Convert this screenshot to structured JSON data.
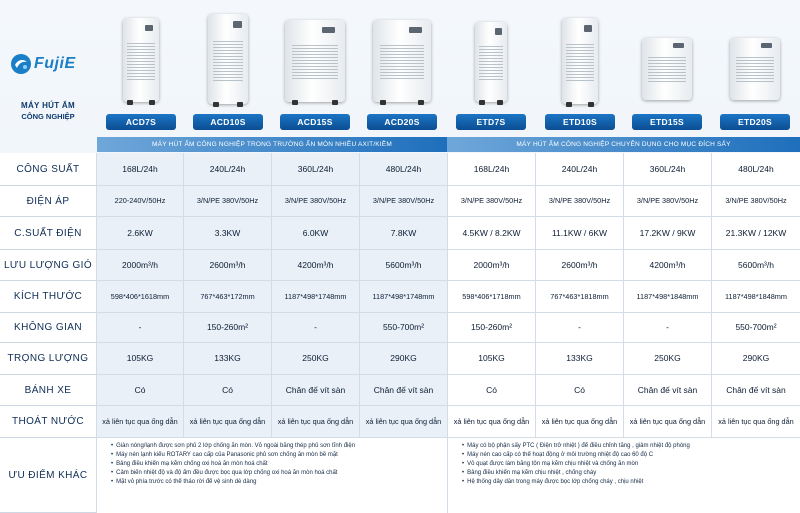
{
  "brand": {
    "logo_text": "FujiE",
    "title_line1": "MÁY HÚT ẨM",
    "title_line2": "CÔNG NGHIỆP"
  },
  "products": [
    {
      "model": "ACD7S"
    },
    {
      "model": "ACD10S"
    },
    {
      "model": "ACD15S"
    },
    {
      "model": "ACD20S"
    },
    {
      "model": "ETD7S"
    },
    {
      "model": "ETD10S"
    },
    {
      "model": "ETD15S"
    },
    {
      "model": "ETD20S"
    }
  ],
  "groups": {
    "acid": "MÁY HÚT ẨM CÔNG NGHIỆP TRONG TRƯỜNG ẨN MÒN NHIỀU AXIT/KIỀM",
    "drying": "MÁY HÚT ẨM CÔNG NGHIỆP CHUYÊN DỤNG CHO MỤC ĐÍCH SẤY"
  },
  "rows": [
    {
      "label": "CÔNG SUẤT",
      "values": [
        "168L/24h",
        "240L/24h",
        "360L/24h",
        "480L/24h",
        "168L/24h",
        "240L/24h",
        "360L/24h",
        "480L/24h"
      ]
    },
    {
      "label": "ĐIỆN ÁP",
      "values": [
        "220-240V/50Hz",
        "3/N/PE 380V/50Hz",
        "3/N/PE 380V/50Hz",
        "3/N/PE 380V/50Hz",
        "3/N/PE 380V/50Hz",
        "3/N/PE 380V/50Hz",
        "3/N/PE 380V/50Hz",
        "3/N/PE 380V/50Hz"
      ]
    },
    {
      "label": "C.SUẤT ĐIỆN",
      "values": [
        "2.6KW",
        "3.3KW",
        "6.0KW",
        "7.8KW",
        "4.5KW / 8.2KW",
        "11.1KW / 6KW",
        "17.2KW / 9KW",
        "21.3KW / 12KW"
      ]
    },
    {
      "label": "LƯU LƯỢNG GIÓ",
      "values": [
        "2000m³/h",
        "2600m³/h",
        "4200m³/h",
        "5600m³/h",
        "2000m³/h",
        "2600m³/h",
        "4200m³/h",
        "5600m³/h"
      ]
    },
    {
      "label": "KÍCH THƯỚC",
      "values": [
        "598*406*1618mm",
        "767*463*172mm",
        "1187*498*1748mm",
        "1187*498*1748mm",
        "598*406*1718mm",
        "767*463*1818mm",
        "1187*498*1848mm",
        "1187*498*1848mm"
      ]
    },
    {
      "label": "KHÔNG GIAN",
      "values": [
        "-",
        "150-260m²",
        "-",
        "550-700m²",
        "150-260m²",
        "-",
        "-",
        "550-700m²"
      ]
    },
    {
      "label": "TRỌNG LƯỢNG",
      "values": [
        "105KG",
        "133KG",
        "250KG",
        "290KG",
        "105KG",
        "133KG",
        "250KG",
        "290KG"
      ]
    },
    {
      "label": "BÁNH XE",
      "values": [
        "Có",
        "Có",
        "Chân đế vít sàn",
        "Chân đế vít sàn",
        "Có",
        "Có",
        "Chân đế vít sàn",
        "Chân đế vít sàn"
      ]
    },
    {
      "label": "THOÁT NƯỚC",
      "values": [
        "xả liên tục qua ống dẫn",
        "xả liên tục qua ống dẫn",
        "xả liên tục qua ống dẫn",
        "xả liên tục qua ống dẫn",
        "xả liên tục qua ống dẫn",
        "xả liên tục qua ống dẫn",
        "xả liên tục qua ống dẫn",
        "xả liên tục qua ống dẫn"
      ]
    }
  ],
  "advantages": {
    "label": "ƯU ĐIỂM KHÁC",
    "acid": [
      "Giàn nóng/lạnh được sơn phủ 2 lớp chống ăn mòn. Vỏ ngoài bằng thép phủ sơn tĩnh điện",
      "Máy nén lạnh kiểu ROTARY cao cấp của Panasonic phủ sơn chống ăn mòn bề mặt",
      "Bảng điều khiển mạ kẽm chống oxi hoá ăn mòn hoá chất",
      "Cảm biến nhiệt độ và độ ẩm đều được bọc qua lớp chống oxi hoá ăn mòn hoá chất",
      "Mặt vỏ phía trước có thể tháo rời để vệ sinh dễ dàng"
    ],
    "drying": [
      "Máy có bộ phận sấy PTC ( Điện trở nhiệt ) để điều chỉnh tăng , giảm nhiệt độ phòng",
      "Máy nén cao cấp có thể hoạt động ở môi trường nhiệt độ cao 60 độ C",
      "Vỏ quạt được làm bằng tôn mạ kẽm chịu nhiệt và chống ăn mòn",
      "Bảng điều khiển mạ kẽm chịu nhiệt , chống cháy",
      "Hệ thống dây dẫn trong máy được bọc lớp chống cháy , chịu nhiệt"
    ]
  },
  "colors": {
    "accent": "#1a6fbc",
    "header_gradient_start": "#6fa7d9",
    "label_text": "#0e2d55"
  }
}
